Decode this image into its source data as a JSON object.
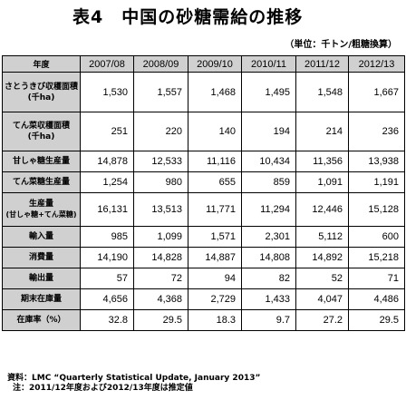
{
  "title": "表4　中国の砂糖需給の推移",
  "unit_note": "（単位：千トン/粗糖換算）",
  "table": {
    "corner_label": "年度",
    "columns": [
      "2007/08",
      "2008/09",
      "2009/10",
      "2010/11",
      "2011/12",
      "2012/13"
    ],
    "rows": [
      {
        "label": "さとうきび収穫面積",
        "sub": "",
        "unit": "(千ha)",
        "values": [
          "1,530",
          "1,557",
          "1,468",
          "1,495",
          "1,548",
          "1,667"
        ]
      },
      {
        "label": "てん菜収穫面積",
        "sub": "",
        "unit": "(千ha)",
        "values": [
          "251",
          "220",
          "140",
          "194",
          "214",
          "236"
        ]
      },
      {
        "label": "甘しゃ糖生産量",
        "sub": "",
        "unit": "",
        "values": [
          "14,878",
          "12,533",
          "11,116",
          "10,434",
          "11,356",
          "13,938"
        ]
      },
      {
        "label": "てん菜糖生産量",
        "sub": "",
        "unit": "",
        "values": [
          "1,254",
          "980",
          "655",
          "859",
          "1,091",
          "1,191"
        ]
      },
      {
        "label": "生産量",
        "sub": "(甘しゃ糖+てん菜糖)",
        "unit": "",
        "values": [
          "16,131",
          "13,513",
          "11,771",
          "11,294",
          "12,446",
          "15,128"
        ]
      },
      {
        "label": "輸入量",
        "sub": "",
        "unit": "",
        "values": [
          "985",
          "1,099",
          "1,571",
          "2,301",
          "5,112",
          "600"
        ]
      },
      {
        "label": "消費量",
        "sub": "",
        "unit": "",
        "values": [
          "14,190",
          "14,828",
          "14,887",
          "14,808",
          "14,892",
          "15,218"
        ]
      },
      {
        "label": "輸出量",
        "sub": "",
        "unit": "",
        "values": [
          "57",
          "72",
          "94",
          "82",
          "52",
          "71"
        ]
      },
      {
        "label": "期末在庫量",
        "sub": "",
        "unit": "",
        "values": [
          "4,656",
          "4,368",
          "2,729",
          "1,433",
          "4,047",
          "4,486"
        ]
      },
      {
        "label": "在庫率（%）",
        "sub": "",
        "unit": "",
        "values": [
          "32.8",
          "29.5",
          "18.3",
          "9.7",
          "27.2",
          "29.5"
        ]
      }
    ]
  },
  "notes": {
    "source": "資料：LMC “Quarterly Statistical Update, January 2013”",
    "note": "注：2011/12年度および2012/13年度は推定値"
  }
}
